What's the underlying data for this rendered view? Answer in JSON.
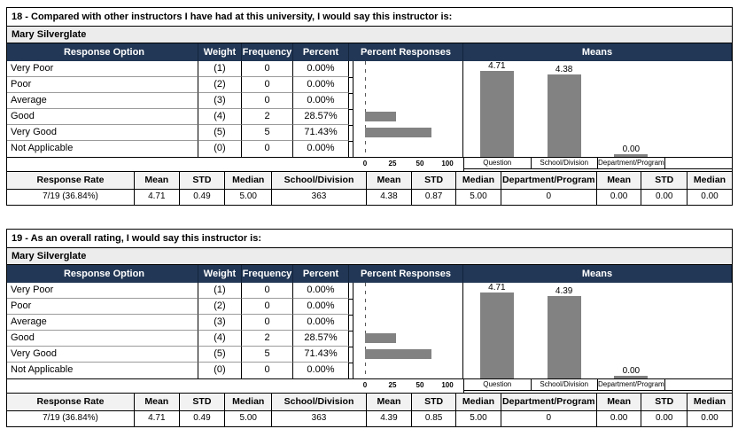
{
  "colors": {
    "header_bar_bg": "#223755",
    "header_bar_text": "#ffffff",
    "instructor_row_bg": "#ECECEC",
    "summary_header_bg": "#F2F2F2",
    "chart_bar": "#828282"
  },
  "blocks": [
    {
      "title": "18 - Compared with other instructors I have had at this university, I would say this instructor is:",
      "instructor": "Mary Silverglate",
      "columns": {
        "response_option": "Response Option",
        "weight": "Weight",
        "frequency": "Frequency",
        "percent": "Percent",
        "percent_responses": "Percent Responses",
        "means": "Means"
      },
      "rows": [
        {
          "label": "Very Poor",
          "weight": "(1)",
          "frequency": "0",
          "percent": "0.00%"
        },
        {
          "label": "Poor",
          "weight": "(2)",
          "frequency": "0",
          "percent": "0.00%"
        },
        {
          "label": "Average",
          "weight": "(3)",
          "frequency": "0",
          "percent": "0.00%"
        },
        {
          "label": "Good",
          "weight": "(4)",
          "frequency": "2",
          "percent": "28.57%"
        },
        {
          "label": "Very Good",
          "weight": "(5)",
          "frequency": "5",
          "percent": "71.43%"
        },
        {
          "label": "Not Applicable",
          "weight": "(0)",
          "frequency": "0",
          "percent": "0.00%"
        }
      ],
      "charts": {
        "percent_responses": {
          "type": "bar",
          "orientation": "horizontal",
          "categories": [
            "Very Poor",
            "Poor",
            "Average",
            "Good",
            "Very Good",
            "Not Applicable"
          ],
          "values": [
            0,
            0,
            0,
            28.57,
            71.43,
            0
          ],
          "xticks": [
            0,
            25,
            50,
            100
          ],
          "tick_labels": [
            "0",
            "25",
            "50",
            "100"
          ]
        },
        "means": {
          "type": "bar",
          "categories": [
            "Question",
            "School/Division",
            "Department/Program"
          ],
          "values": [
            4.71,
            4.38,
            0
          ],
          "value_labels": [
            "4.71",
            "4.38",
            "0.00"
          ],
          "axis_labels": [
            "Question",
            "School/Division",
            "Department/Program",
            ""
          ],
          "ylim": [
            0,
            5
          ]
        }
      },
      "summary": {
        "headers": [
          "Response Rate",
          "Mean",
          "STD",
          "Median",
          "School/Division",
          "Mean",
          "STD",
          "Median",
          "Department/Program",
          "Mean",
          "STD",
          "Median"
        ],
        "values": [
          "7/19 (36.84%)",
          "4.71",
          "0.49",
          "5.00",
          "363",
          "4.38",
          "0.87",
          "5.00",
          "0",
          "0.00",
          "0.00",
          "0.00"
        ]
      }
    },
    {
      "title": "19 - As an overall rating, I would say this instructor is:",
      "instructor": "Mary Silverglate",
      "columns": {
        "response_option": "Response Option",
        "weight": "Weight",
        "frequency": "Frequency",
        "percent": "Percent",
        "percent_responses": "Percent Responses",
        "means": "Means"
      },
      "rows": [
        {
          "label": "Very Poor",
          "weight": "(1)",
          "frequency": "0",
          "percent": "0.00%"
        },
        {
          "label": "Poor",
          "weight": "(2)",
          "frequency": "0",
          "percent": "0.00%"
        },
        {
          "label": "Average",
          "weight": "(3)",
          "frequency": "0",
          "percent": "0.00%"
        },
        {
          "label": "Good",
          "weight": "(4)",
          "frequency": "2",
          "percent": "28.57%"
        },
        {
          "label": "Very Good",
          "weight": "(5)",
          "frequency": "5",
          "percent": "71.43%"
        },
        {
          "label": "Not Applicable",
          "weight": "(0)",
          "frequency": "0",
          "percent": "0.00%"
        }
      ],
      "charts": {
        "percent_responses": {
          "type": "bar",
          "orientation": "horizontal",
          "categories": [
            "Very Poor",
            "Poor",
            "Average",
            "Good",
            "Very Good",
            "Not Applicable"
          ],
          "values": [
            0,
            0,
            0,
            28.57,
            71.43,
            0
          ],
          "xticks": [
            0,
            25,
            50,
            100
          ],
          "tick_labels": [
            "0",
            "25",
            "50",
            "100"
          ]
        },
        "means": {
          "type": "bar",
          "categories": [
            "Question",
            "School/Division",
            "Department/Program"
          ],
          "values": [
            4.71,
            4.39,
            0
          ],
          "value_labels": [
            "4.71",
            "4.39",
            "0.00"
          ],
          "axis_labels": [
            "Question",
            "School/Division",
            "Department/Program",
            ""
          ],
          "ylim": [
            0,
            5
          ]
        }
      },
      "summary": {
        "headers": [
          "Response Rate",
          "Mean",
          "STD",
          "Median",
          "School/Division",
          "Mean",
          "STD",
          "Median",
          "Department/Program",
          "Mean",
          "STD",
          "Median"
        ],
        "values": [
          "7/19 (36.84%)",
          "4.71",
          "0.49",
          "5.00",
          "363",
          "4.39",
          "0.85",
          "5.00",
          "0",
          "0.00",
          "0.00",
          "0.00"
        ]
      }
    }
  ]
}
